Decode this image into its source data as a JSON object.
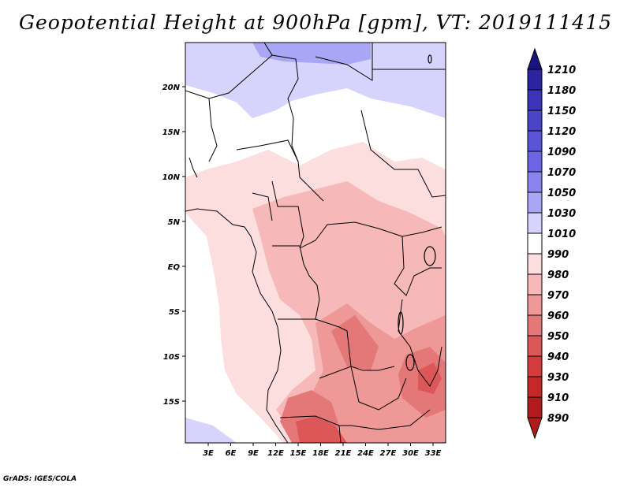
{
  "title": "Geopotential Height at 900hPa [gpm], VT: 2019111415",
  "credit": "GrADS: IGES/COLA",
  "lat_labels": [
    "20N",
    "15N",
    "10N",
    "5N",
    "EQ",
    "5S",
    "10S",
    "15S"
  ],
  "lon_labels": [
    "3E",
    "6E",
    "9E",
    "12E",
    "15E",
    "18E",
    "21E",
    "24E",
    "27E",
    "30E",
    "33E"
  ],
  "colorbar": {
    "levels": [
      "1210",
      "1180",
      "1150",
      "1120",
      "1090",
      "1070",
      "1050",
      "1030",
      "1010",
      "990",
      "980",
      "970",
      "960",
      "950",
      "940",
      "930",
      "910",
      "890"
    ],
    "colors": [
      "#1a1480",
      "#2a24a0",
      "#3a34b8",
      "#4a44c8",
      "#5a54d8",
      "#6c66e4",
      "#8a84ee",
      "#aaa6f6",
      "#d6d4fc",
      "#ffffff",
      "#fcdede",
      "#f6b8b8",
      "#ee9898",
      "#e47878",
      "#dc5858",
      "#d43c3c",
      "#c42828",
      "#b01c1c"
    ]
  }
}
